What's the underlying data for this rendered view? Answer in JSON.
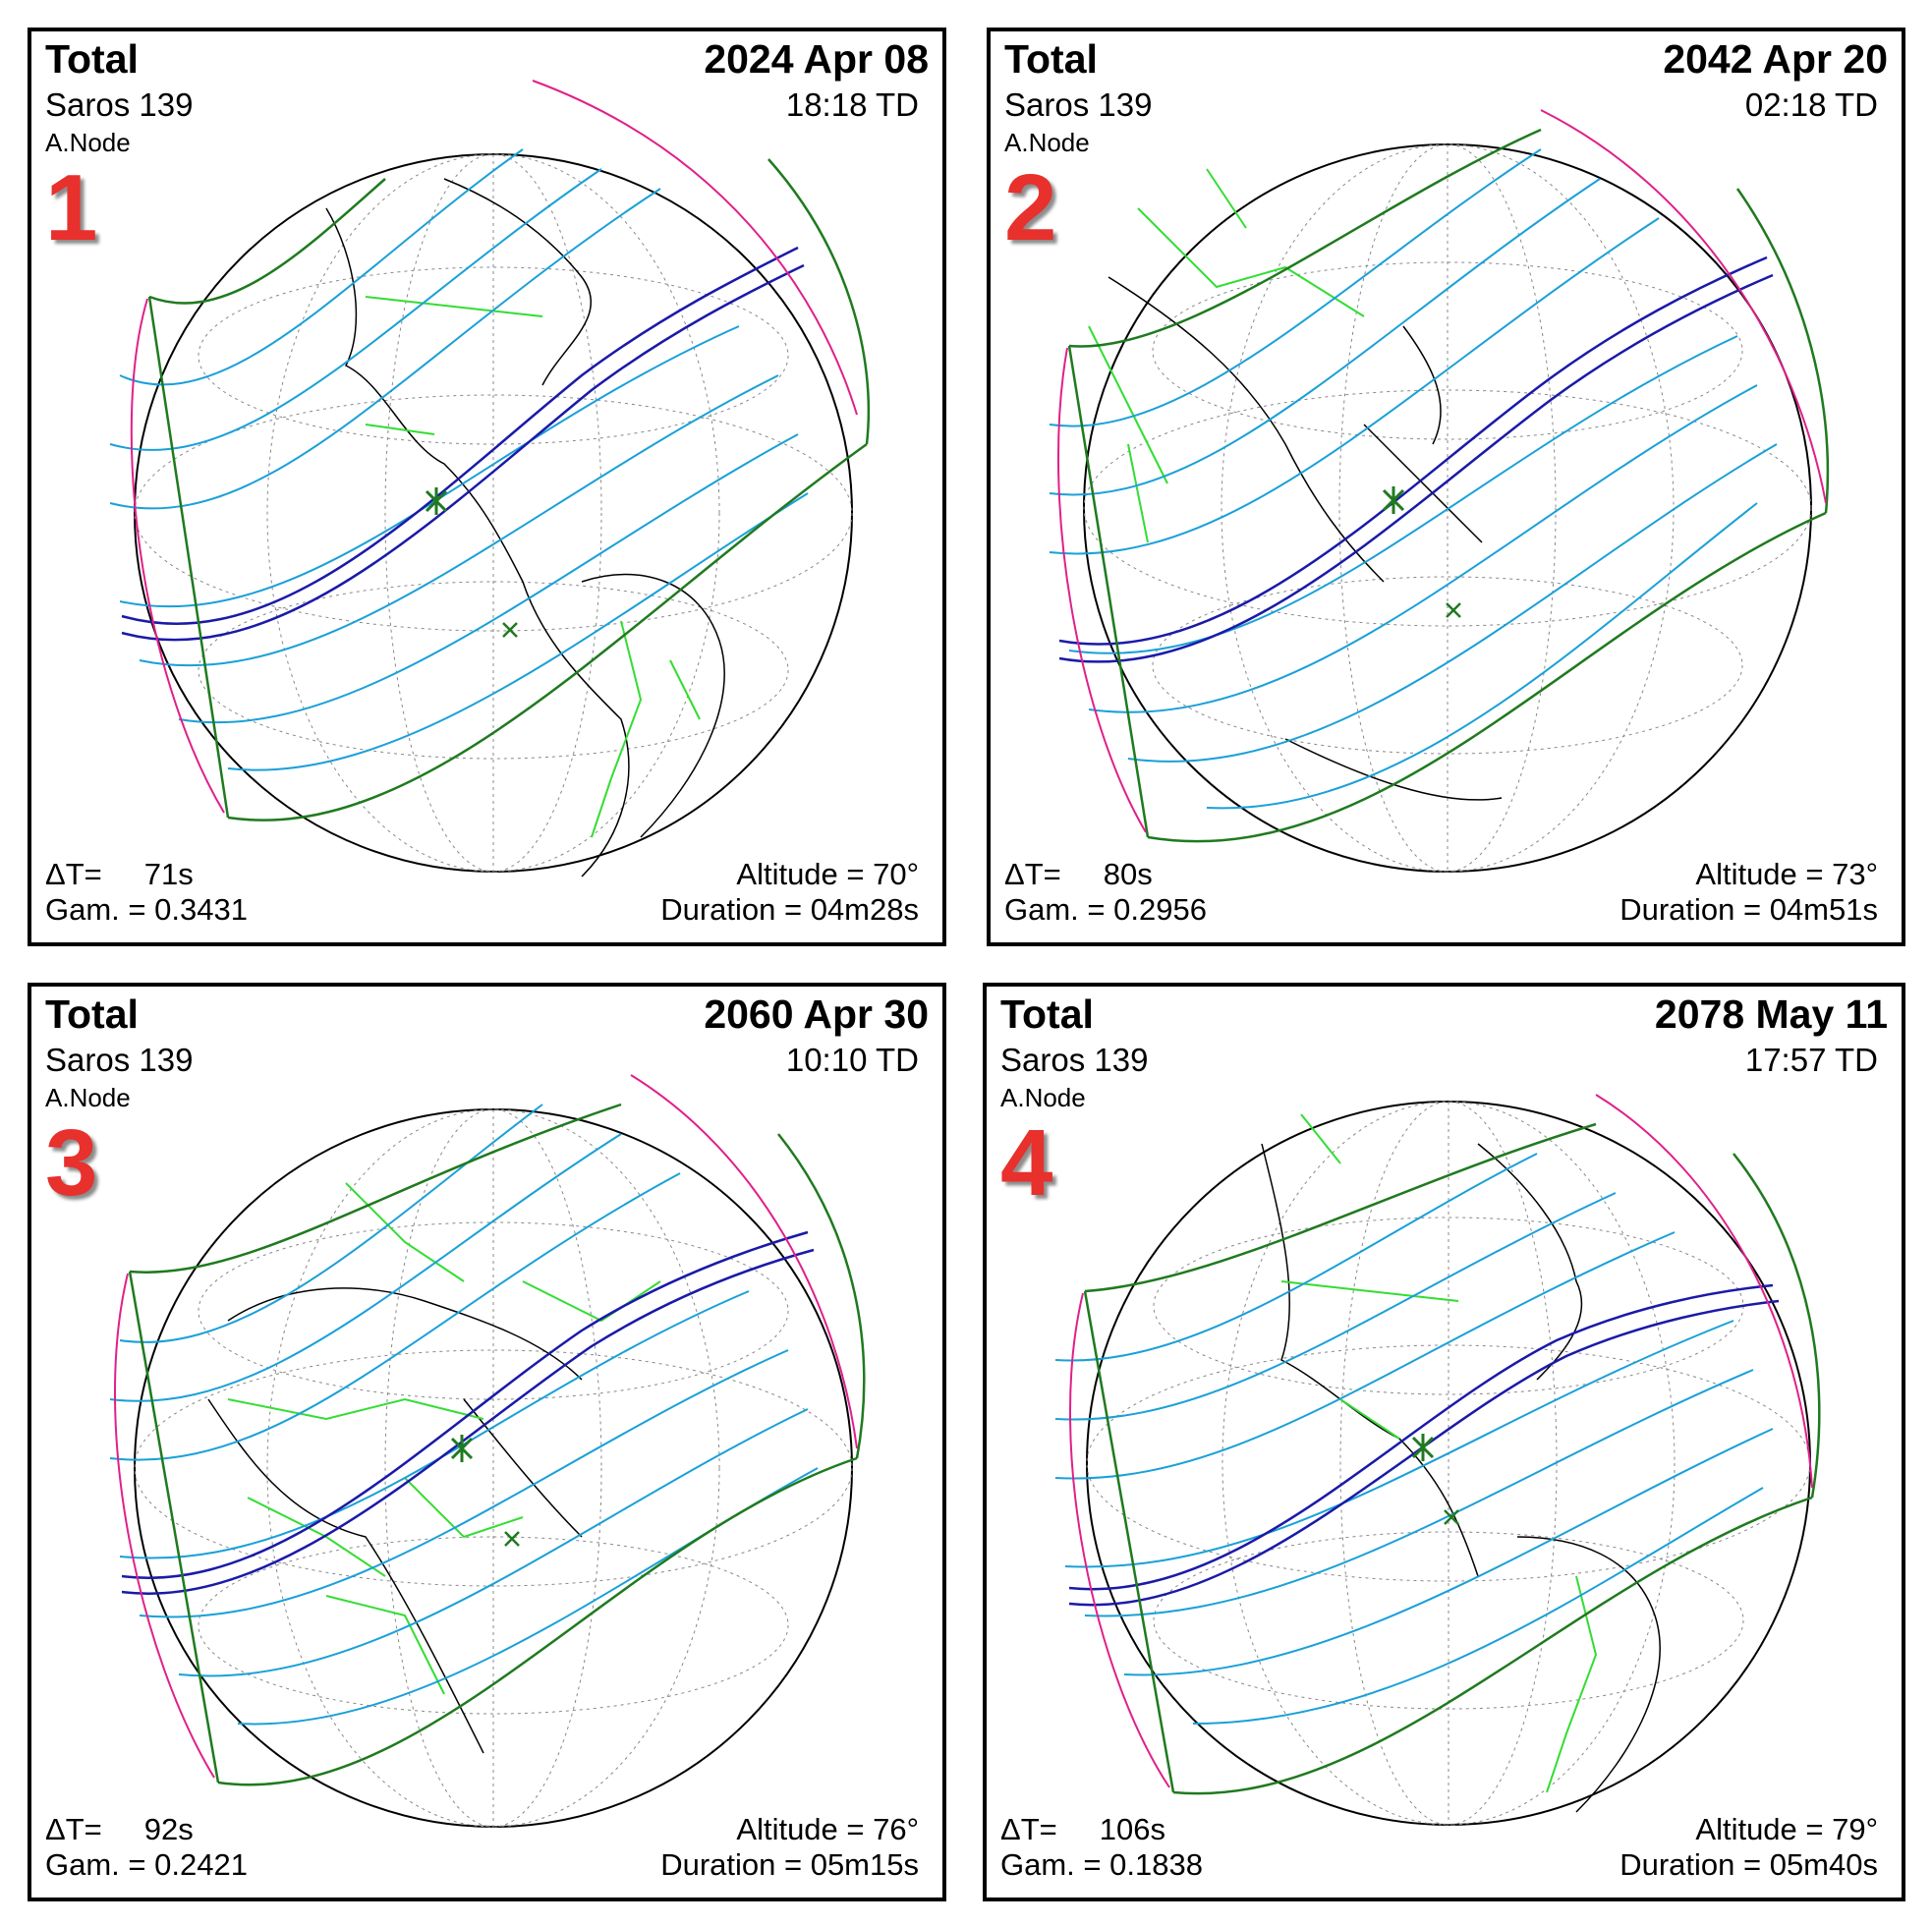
{
  "colors": {
    "central_path": "#1a1aa8",
    "isochrone": "#1aa0d8",
    "penumbra_limit": "#1f7a1f",
    "sunrise_sunset": "#e0208a",
    "borders": "#33dd33",
    "coast": "#000000",
    "label_number": "#e8302c"
  },
  "panels": [
    {
      "number": "1",
      "type": "Total",
      "date": "2024 Apr 08",
      "saros": "Saros 139",
      "time": "18:18 TD",
      "node": "A.Node",
      "delta_t": "ΔT=     71s",
      "gamma": "Gam. = 0.3431",
      "altitude": "Altitude = 70°",
      "duration": "Duration = 04m28s"
    },
    {
      "number": "2",
      "type": "Total",
      "date": "2042 Apr 20",
      "saros": "Saros 139",
      "time": "02:18 TD",
      "node": "A.Node",
      "delta_t": "ΔT=     80s",
      "gamma": "Gam. = 0.2956",
      "altitude": "Altitude = 73°",
      "duration": "Duration = 04m51s"
    },
    {
      "number": "3",
      "type": "Total",
      "date": "2060 Apr 30",
      "saros": "Saros 139",
      "time": "10:10 TD",
      "node": "A.Node",
      "delta_t": "ΔT=     92s",
      "gamma": "Gam. = 0.2421",
      "altitude": "Altitude = 76°",
      "duration": "Duration = 05m15s"
    },
    {
      "number": "4",
      "type": "Total",
      "date": "2078 May 11",
      "saros": "Saros 139",
      "time": "17:57 TD",
      "node": "A.Node",
      "delta_t": "ΔT=     106s",
      "gamma": "Gam. = 0.1838",
      "altitude": "Altitude = 79°",
      "duration": "Duration = 05m40s"
    }
  ]
}
